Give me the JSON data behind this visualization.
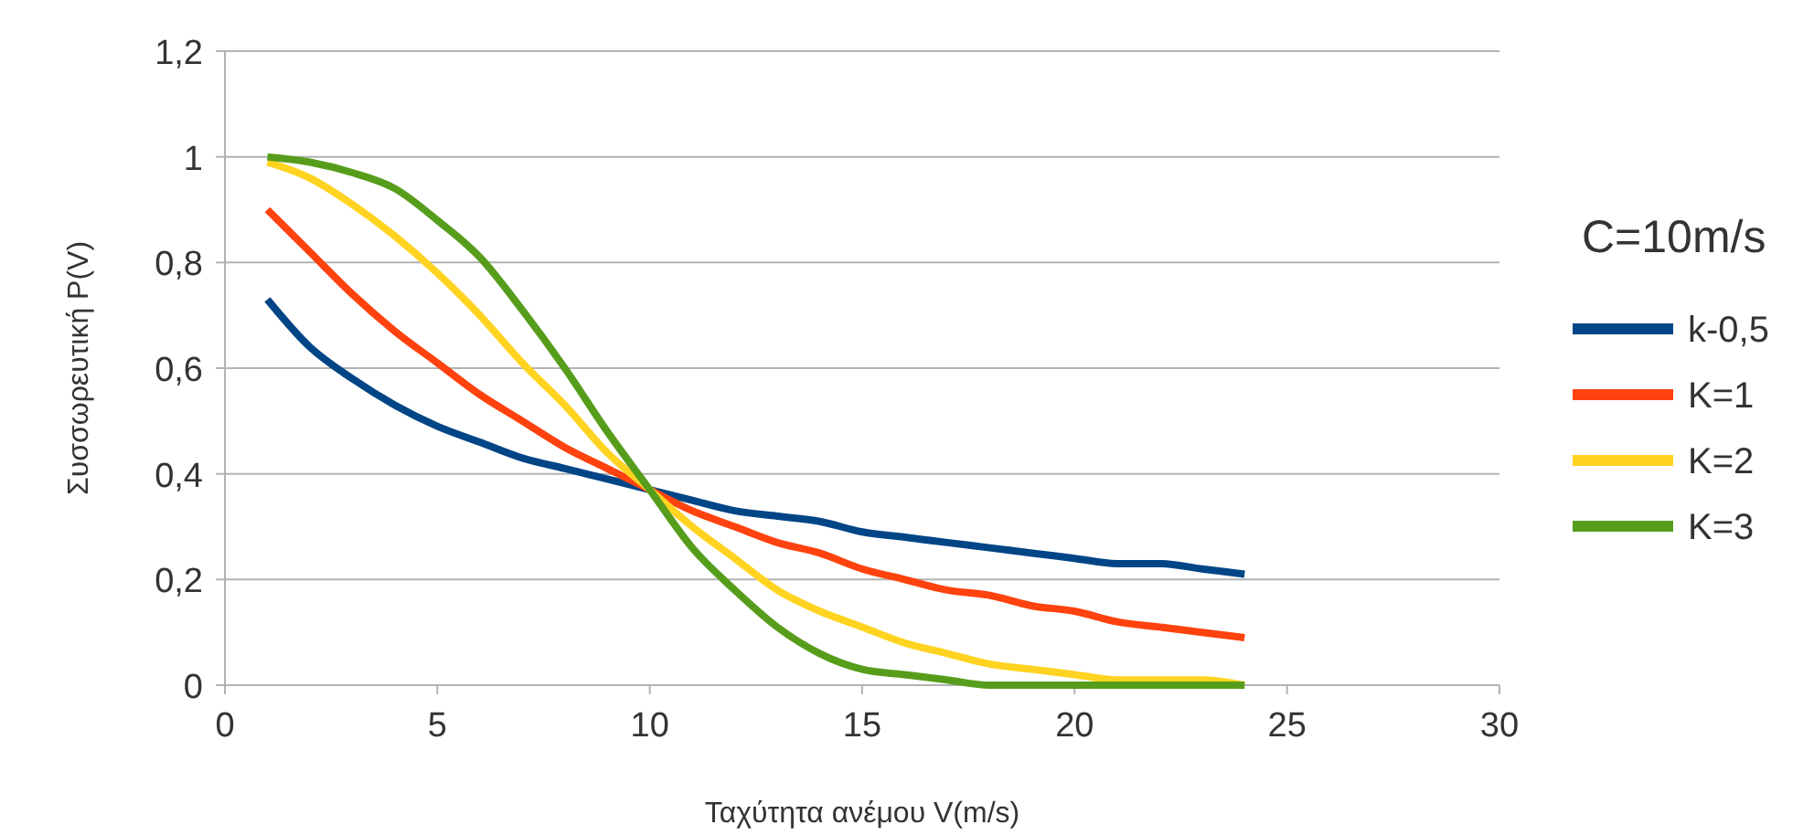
{
  "chart_data": {
    "type": "line",
    "xlabel": "Ταχύτητα ανέμου V(m/s)",
    "ylabel": "Συσσωρευτική P(V)",
    "legend_title": "C=10m/s",
    "legend": "right",
    "grid": "y",
    "marker": "none",
    "line_style": "solid",
    "x": [
      1,
      2,
      3,
      4,
      5,
      6,
      7,
      8,
      9,
      10,
      11,
      12,
      13,
      14,
      15,
      16,
      17,
      18,
      19,
      20,
      21,
      22,
      23,
      24
    ],
    "xlim": [
      0,
      30
    ],
    "xticks": [
      0,
      5,
      10,
      15,
      20,
      25,
      30
    ],
    "ylim": [
      0,
      1.2
    ],
    "yticks": [
      0,
      {
        "value": 0.2,
        "label": "0,2"
      },
      {
        "value": 0.4,
        "label": "0,4"
      },
      {
        "value": 0.6,
        "label": "0,6"
      },
      {
        "value": 0.8,
        "label": "0,8"
      },
      1,
      {
        "value": 1.2,
        "label": "1,2"
      }
    ],
    "series": [
      {
        "name": "k-0,5",
        "color": "#004586",
        "values": [
          0.73,
          0.64,
          0.58,
          0.53,
          0.49,
          0.46,
          0.43,
          0.41,
          0.39,
          0.37,
          0.35,
          0.33,
          0.32,
          0.31,
          0.29,
          0.28,
          0.27,
          0.26,
          0.25,
          0.24,
          0.23,
          0.23,
          0.22,
          0.21
        ]
      },
      {
        "name": "K=1",
        "color": "#ff420e",
        "values": [
          0.9,
          0.82,
          0.74,
          0.67,
          0.61,
          0.55,
          0.5,
          0.45,
          0.41,
          0.37,
          0.33,
          0.3,
          0.27,
          0.25,
          0.22,
          0.2,
          0.18,
          0.17,
          0.15,
          0.14,
          0.12,
          0.11,
          0.1,
          0.09
        ]
      },
      {
        "name": "K=2",
        "color": "#ffd320",
        "values": [
          0.99,
          0.96,
          0.91,
          0.85,
          0.78,
          0.7,
          0.61,
          0.53,
          0.44,
          0.37,
          0.3,
          0.24,
          0.18,
          0.14,
          0.11,
          0.08,
          0.06,
          0.04,
          0.03,
          0.02,
          0.01,
          0.01,
          0.01,
          0
        ]
      },
      {
        "name": "K=3",
        "color": "#579d1c",
        "values": [
          1,
          0.99,
          0.97,
          0.94,
          0.88,
          0.81,
          0.71,
          0.6,
          0.48,
          0.37,
          0.26,
          0.18,
          0.11,
          0.06,
          0.03,
          0.02,
          0.01,
          0,
          0,
          0,
          0,
          0,
          0,
          0
        ]
      }
    ]
  }
}
